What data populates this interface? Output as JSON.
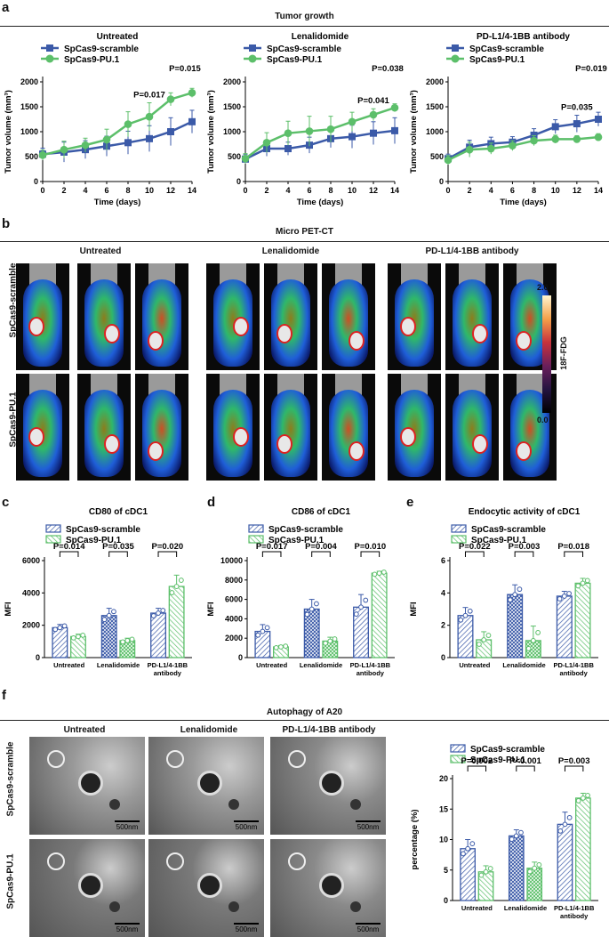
{
  "panels": {
    "a": "a",
    "b": "b",
    "c": "c",
    "d": "d",
    "e": "e",
    "f": "f"
  },
  "section_a_title": "Tumor growth",
  "section_b_title": "Micro PET-CT",
  "section_f_title": "Autophagy of A20",
  "legend": {
    "scramble": "SpCas9-scramble",
    "pu1": "SpCas9-PU.1"
  },
  "colors": {
    "scramble": "#3b5aa8",
    "pu1": "#5cbf6a"
  },
  "pet": {
    "columns": [
      "Untreated",
      "Lenalidomide",
      "PD-L1/4-1BB antibody"
    ],
    "rows": [
      "SpCas9-scramble",
      "SpCas9-PU.1"
    ],
    "colorbar": {
      "label": "18F-FDG",
      "max": "2.0",
      "min": "0.0"
    }
  },
  "em": {
    "columns": [
      "Untreated",
      "Lenalidomide",
      "PD-L1/4-1BB antibody"
    ],
    "rows": [
      "SpCas9-scramble",
      "SpCas9-PU.1"
    ],
    "scale": "500nm"
  },
  "chart_data": [
    {
      "type": "line",
      "title": "Untreated",
      "xlabel": "Time (days)",
      "ylabel": "Tumor volume (mm³)",
      "x": [
        0,
        2,
        4,
        6,
        8,
        10,
        12,
        14
      ],
      "xlim": [
        0,
        14
      ],
      "ylim": [
        0,
        2000
      ],
      "yticks": [
        0,
        500,
        1000,
        1500,
        2000
      ],
      "series": [
        {
          "name": "SpCas9-scramble",
          "values": [
            550,
            590,
            640,
            710,
            780,
            860,
            1000,
            1200
          ],
          "err": [
            120,
            200,
            180,
            200,
            230,
            260,
            280,
            230
          ]
        },
        {
          "name": "SpCas9-PU.1",
          "values": [
            530,
            640,
            730,
            840,
            1150,
            1300,
            1650,
            1780
          ],
          "err": [
            100,
            170,
            140,
            210,
            250,
            280,
            130,
            90
          ]
        }
      ],
      "annotations": [
        {
          "text": "P=0.017",
          "x": 10
        },
        {
          "text": "P=0.015",
          "x": 14
        }
      ]
    },
    {
      "type": "line",
      "title": "Lenalidomide",
      "xlabel": "Time (days)",
      "ylabel": "Tumor volume (mm³)",
      "x": [
        0,
        2,
        4,
        6,
        8,
        10,
        12,
        14
      ],
      "xlim": [
        0,
        14
      ],
      "ylim": [
        0,
        2000
      ],
      "yticks": [
        0,
        500,
        1000,
        1500,
        2000
      ],
      "series": [
        {
          "name": "SpCas9-scramble",
          "values": [
            450,
            660,
            660,
            730,
            860,
            900,
            970,
            1020
          ],
          "err": [
            90,
            150,
            130,
            160,
            180,
            230,
            230,
            260
          ]
        },
        {
          "name": "SpCas9-PU.1",
          "values": [
            460,
            780,
            970,
            1010,
            1050,
            1200,
            1340,
            1480
          ],
          "err": [
            100,
            200,
            240,
            300,
            260,
            190,
            120,
            80
          ]
        }
      ],
      "annotations": [
        {
          "text": "P=0.041",
          "x": 12
        },
        {
          "text": "P=0.038",
          "x": 14
        }
      ]
    },
    {
      "type": "line",
      "title": "PD-L1/4-1BB antibody",
      "xlabel": "Time (days)",
      "ylabel": "Tumor volume (mm³)",
      "x": [
        0,
        2,
        4,
        6,
        8,
        10,
        12,
        14
      ],
      "xlim": [
        0,
        14
      ],
      "ylim": [
        0,
        2000
      ],
      "yticks": [
        0,
        500,
        1000,
        1500,
        2000
      ],
      "series": [
        {
          "name": "SpCas9-scramble",
          "values": [
            460,
            690,
            760,
            790,
            930,
            1100,
            1160,
            1250
          ],
          "err": [
            90,
            140,
            130,
            110,
            130,
            140,
            170,
            140
          ]
        },
        {
          "name": "SpCas9-PU.1",
          "values": [
            430,
            640,
            660,
            720,
            820,
            850,
            850,
            890
          ],
          "err": [
            90,
            150,
            110,
            100,
            100,
            80,
            70,
            70
          ]
        }
      ],
      "annotations": [
        {
          "text": "P=0.035",
          "x": 12
        },
        {
          "text": "P=0.019",
          "x": 14
        }
      ]
    },
    {
      "type": "bar",
      "title": "CD80 of cDC1",
      "ylabel": "MFI",
      "ylim": [
        0,
        6000
      ],
      "yticks": [
        0,
        2000,
        4000,
        6000
      ],
      "categories": [
        "Untreated",
        "Lenalidomide",
        "PD-L1/4-1BB antibody"
      ],
      "series": [
        {
          "name": "SpCas9-scramble",
          "values": [
            1850,
            2600,
            2750
          ],
          "err": [
            200,
            450,
            300
          ]
        },
        {
          "name": "SpCas9-PU.1",
          "values": [
            1300,
            1050,
            4400
          ],
          "err": [
            150,
            150,
            700
          ]
        }
      ],
      "pvalues": [
        "P=0.014",
        "P=0.035",
        "P=0.020"
      ]
    },
    {
      "type": "bar",
      "title": "CD86 of cDC1",
      "ylabel": "MFI",
      "ylim": [
        0,
        10000
      ],
      "yticks": [
        0,
        2000,
        4000,
        6000,
        8000,
        10000
      ],
      "categories": [
        "Untreated",
        "Lenalidomide",
        "PD-L1/4-1BB antibody"
      ],
      "series": [
        {
          "name": "SpCas9-scramble",
          "values": [
            2700,
            5000,
            5200
          ],
          "err": [
            700,
            1000,
            1300
          ]
        },
        {
          "name": "SpCas9-PU.1",
          "values": [
            1100,
            1700,
            8700
          ],
          "err": [
            150,
            400,
            200
          ]
        }
      ],
      "pvalues": [
        "P=0.017",
        "P=0.004",
        "P=0.010"
      ]
    },
    {
      "type": "bar",
      "title": "Endocytic activity of cDC1",
      "ylabel": "MFI",
      "ylim": [
        0,
        6
      ],
      "yticks": [
        0,
        2,
        4,
        6
      ],
      "categories": [
        "Untreated",
        "Lenalidomide",
        "PD-L1/4-1BB antibody"
      ],
      "series": [
        {
          "name": "SpCas9-scramble",
          "values": [
            2.6,
            3.9,
            3.8
          ],
          "err": [
            0.5,
            0.6,
            0.3
          ]
        },
        {
          "name": "SpCas9-PU.1",
          "values": [
            1.1,
            1.05,
            4.6
          ],
          "err": [
            0.5,
            0.9,
            0.3
          ]
        }
      ],
      "pvalues": [
        "P=0.022",
        "P=0.003",
        "P=0.018"
      ]
    },
    {
      "type": "bar",
      "title": "",
      "ylabel": "percentage (%)",
      "ylim": [
        0,
        20
      ],
      "yticks": [
        0,
        5,
        10,
        15,
        20
      ],
      "categories": [
        "Untreated",
        "Lenalidomide",
        "PD-L1/4-1BB antibody"
      ],
      "series": [
        {
          "name": "SpCas9-scramble",
          "values": [
            8.5,
            10.6,
            12.5
          ],
          "err": [
            1.5,
            1.0,
            2.0
          ]
        },
        {
          "name": "SpCas9-PU.1",
          "values": [
            4.7,
            5.3,
            16.8
          ],
          "err": [
            1.0,
            1.0,
            0.8
          ]
        }
      ],
      "pvalues": [
        "P=0.002",
        "P<0.001",
        "P=0.003"
      ]
    }
  ]
}
